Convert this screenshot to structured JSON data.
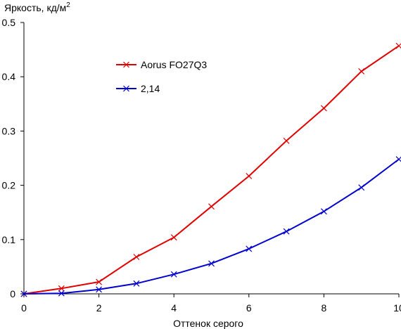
{
  "chart_data": {
    "type": "line",
    "title": "",
    "ylabel_main": "Яркость, кд/м",
    "ylabel_sup": "2",
    "xlabel": "Оттенок серого",
    "xlim": [
      0,
      10
    ],
    "ylim": [
      0,
      0.5
    ],
    "x_ticks": [
      0,
      2,
      4,
      6,
      8,
      10
    ],
    "x_tick_labels": [
      "0",
      "2",
      "4",
      "6",
      "8",
      "10"
    ],
    "y_ticks": [
      0,
      0.1,
      0.2,
      0.3,
      0.4,
      0.5
    ],
    "y_tick_labels": [
      "0",
      "0.1",
      "0.2",
      "0.3",
      "0.4",
      "0.5"
    ],
    "grid": false,
    "legend_position": "upper-left-inside",
    "series": [
      {
        "name": "Aorus FO27Q3",
        "color": "#e00000",
        "marker": "x",
        "x": [
          0,
          1,
          2,
          3,
          4,
          5,
          6,
          7,
          8,
          9,
          10
        ],
        "y": [
          0,
          0.01,
          0.022,
          0.068,
          0.104,
          0.161,
          0.217,
          0.282,
          0.342,
          0.41,
          0.457
        ]
      },
      {
        "name": "2,14",
        "color": "#0000d0",
        "marker": "x",
        "x": [
          0,
          1,
          2,
          3,
          4,
          5,
          6,
          7,
          8,
          9,
          10
        ],
        "y": [
          0,
          0.001,
          0.008,
          0.019,
          0.036,
          0.056,
          0.083,
          0.115,
          0.152,
          0.196,
          0.248
        ]
      }
    ]
  }
}
